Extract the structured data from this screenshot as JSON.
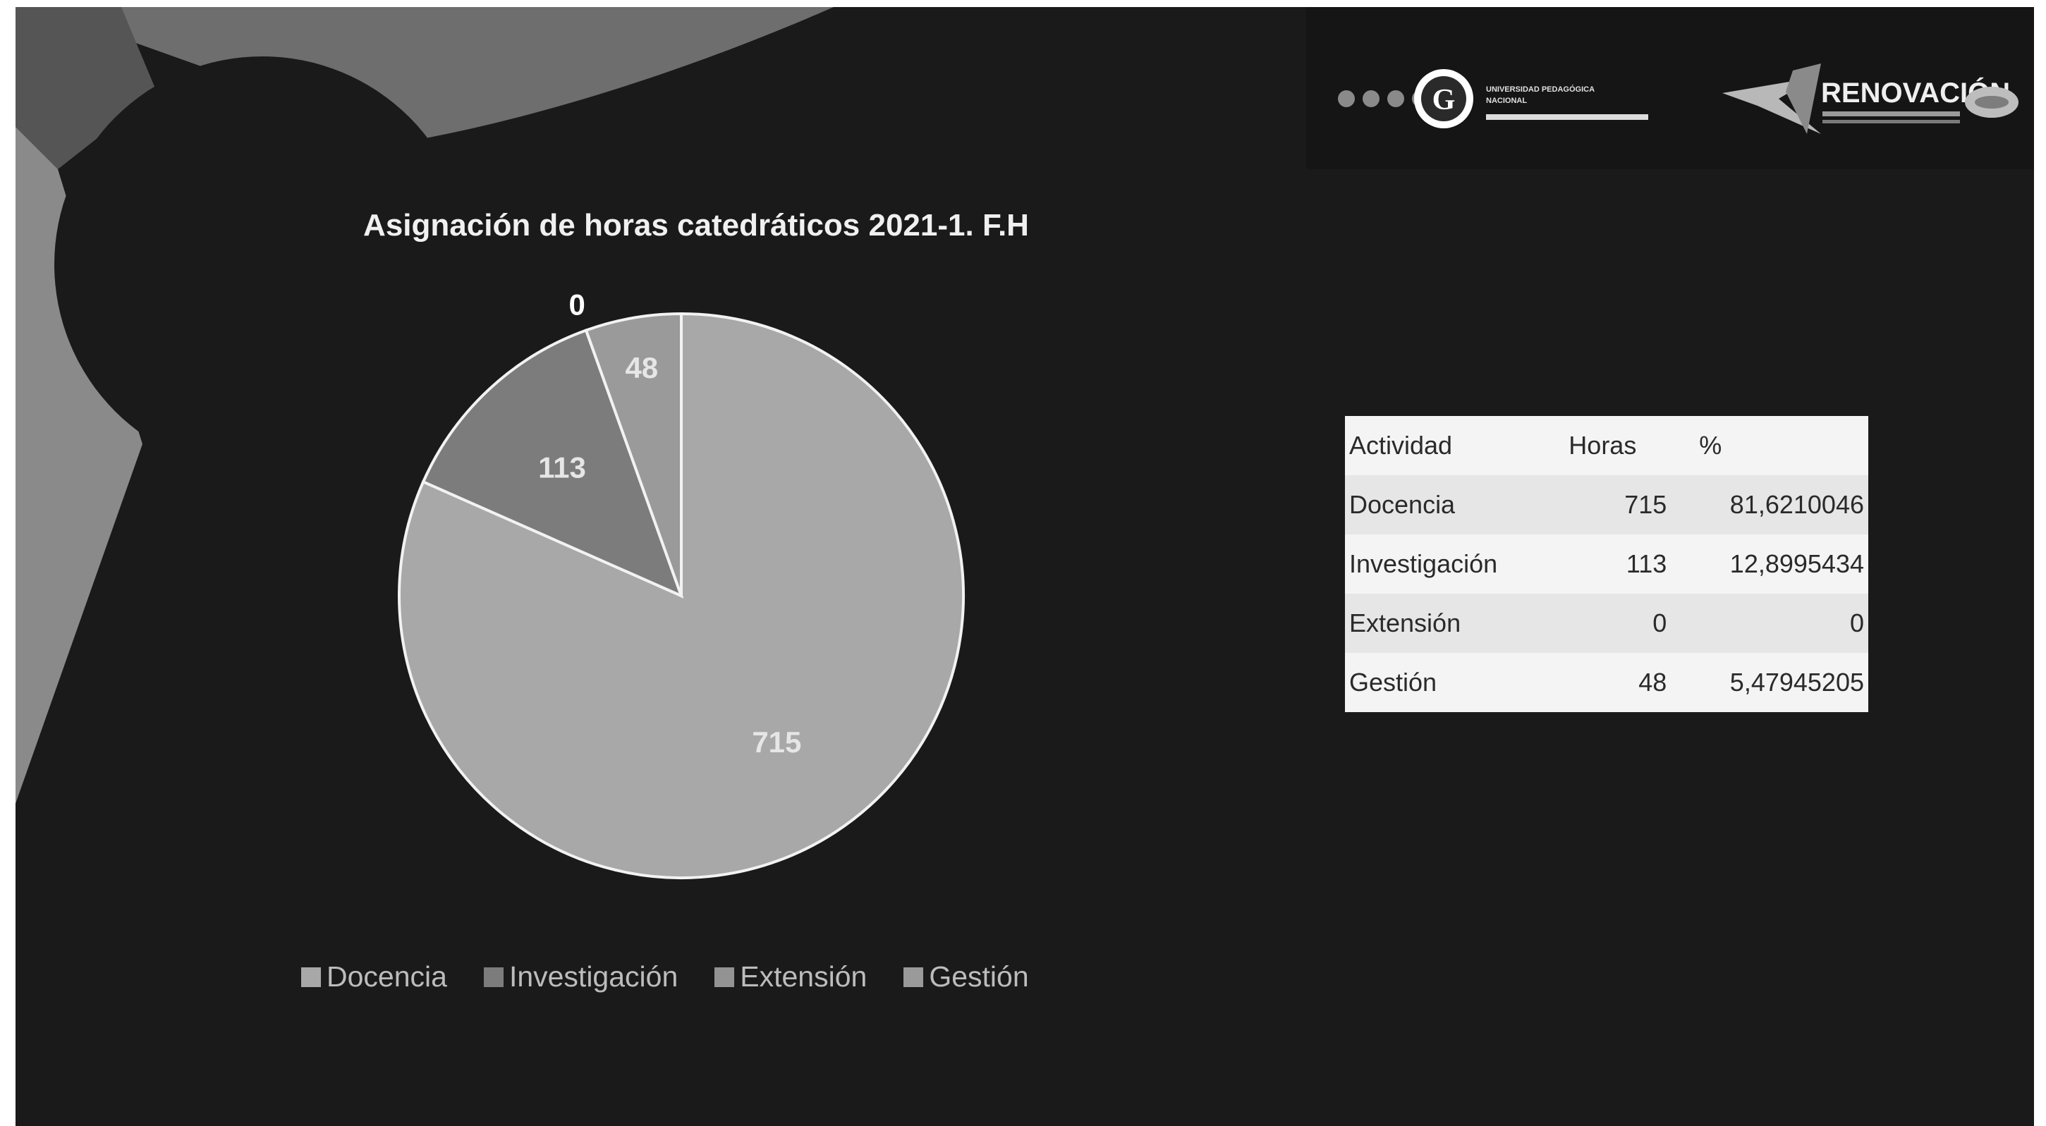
{
  "header": {
    "university_name_line1": "UNIVERSIDAD PEDAGÓGICA",
    "university_name_line2": "NACIONAL",
    "brand": "RENOVACIÓN"
  },
  "colors": {
    "background": "#1a1a1a",
    "docencia": "#a8a8a8",
    "investigacion": "#7c7c7c",
    "extension": "#939393",
    "gestion": "#9a9a9a"
  },
  "chart_data": {
    "type": "pie",
    "title": "Asignación de horas catedráticos 2021-1. F.H",
    "categories": [
      "Docencia",
      "Investigación",
      "Extensión",
      "Gestión"
    ],
    "values": [
      715,
      113,
      0,
      48
    ],
    "data_labels": [
      "715",
      "113",
      "0",
      "48"
    ],
    "legend_position": "bottom"
  },
  "table": {
    "headers": [
      "Actividad",
      "Horas",
      "%"
    ],
    "rows": [
      [
        "Docencia",
        "715",
        "81,6210046"
      ],
      [
        "Investigación",
        "113",
        "12,8995434"
      ],
      [
        "Extensión",
        "0",
        "0"
      ],
      [
        "Gestión",
        "48",
        "5,47945205"
      ]
    ]
  }
}
